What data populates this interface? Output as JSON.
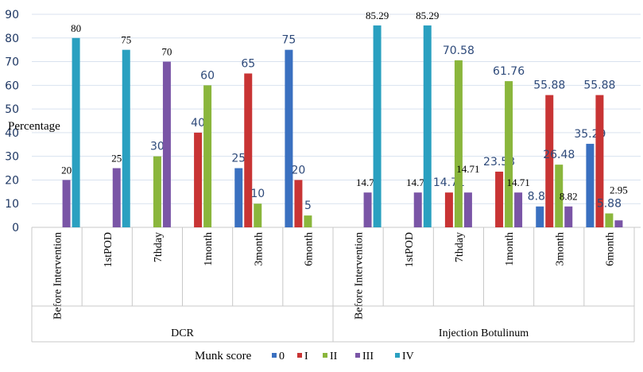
{
  "chart_data": {
    "type": "bar",
    "ylabel": "Percentage",
    "ylim": [
      0,
      90
    ],
    "yticks": [
      0,
      10,
      20,
      30,
      40,
      50,
      60,
      70,
      80,
      90
    ],
    "grid": true,
    "groups": [
      {
        "name": "DCR",
        "categories": [
          "Before Intervention",
          "1stPOD",
          "7thday",
          "1month",
          "3month",
          "6month"
        ]
      },
      {
        "name": "Injection Botulinum",
        "categories": [
          "Before Intervention",
          "1stPOD",
          "7thday",
          "1month",
          "3month",
          "6month"
        ]
      }
    ],
    "legend": {
      "title": "Munk score",
      "placement": "bottom"
    },
    "series": [
      {
        "name": "0",
        "color": "#3a70c0",
        "values": [
          null,
          null,
          null,
          null,
          25,
          75,
          null,
          null,
          null,
          null,
          8.82,
          35.29
        ]
      },
      {
        "name": "I",
        "color": "#c83434",
        "values": [
          null,
          null,
          null,
          40,
          65,
          20,
          null,
          null,
          14.71,
          23.53,
          55.88,
          55.88
        ]
      },
      {
        "name": "II",
        "color": "#8ab63c",
        "values": [
          null,
          null,
          30,
          60,
          10,
          5,
          null,
          null,
          70.58,
          61.76,
          26.48,
          5.88
        ]
      },
      {
        "name": "III",
        "color": "#7a55a6",
        "values": [
          20,
          25,
          70,
          null,
          null,
          null,
          14.71,
          14.71,
          14.71,
          14.71,
          8.82,
          2.95
        ]
      },
      {
        "name": "IV",
        "color": "#2aa0c0",
        "values": [
          80,
          75,
          null,
          null,
          null,
          null,
          85.29,
          85.29,
          null,
          null,
          null,
          null
        ]
      }
    ],
    "data_labels": {
      "0": [
        "",
        "",
        "",
        "",
        "25",
        "75",
        "",
        "",
        "",
        "",
        "8.82",
        "35.29"
      ],
      "I": [
        "",
        "",
        "",
        "40",
        "65",
        "20",
        "",
        "",
        "14.71",
        "23.53",
        "55.88",
        "55.88"
      ],
      "II": [
        "",
        "",
        "30",
        "60",
        "10",
        "5",
        "",
        "",
        "70.58",
        "61.76",
        "26.48",
        "5.88"
      ],
      "III": [
        "20",
        "25",
        "70",
        "",
        "",
        "",
        "14.71",
        "14.71",
        "14.71",
        "14.71",
        "8.82",
        "2.95"
      ],
      "IV": [
        "80",
        "75",
        "",
        "",
        "",
        "",
        "85.29",
        "85.29",
        "",
        "",
        "",
        ""
      ]
    }
  }
}
